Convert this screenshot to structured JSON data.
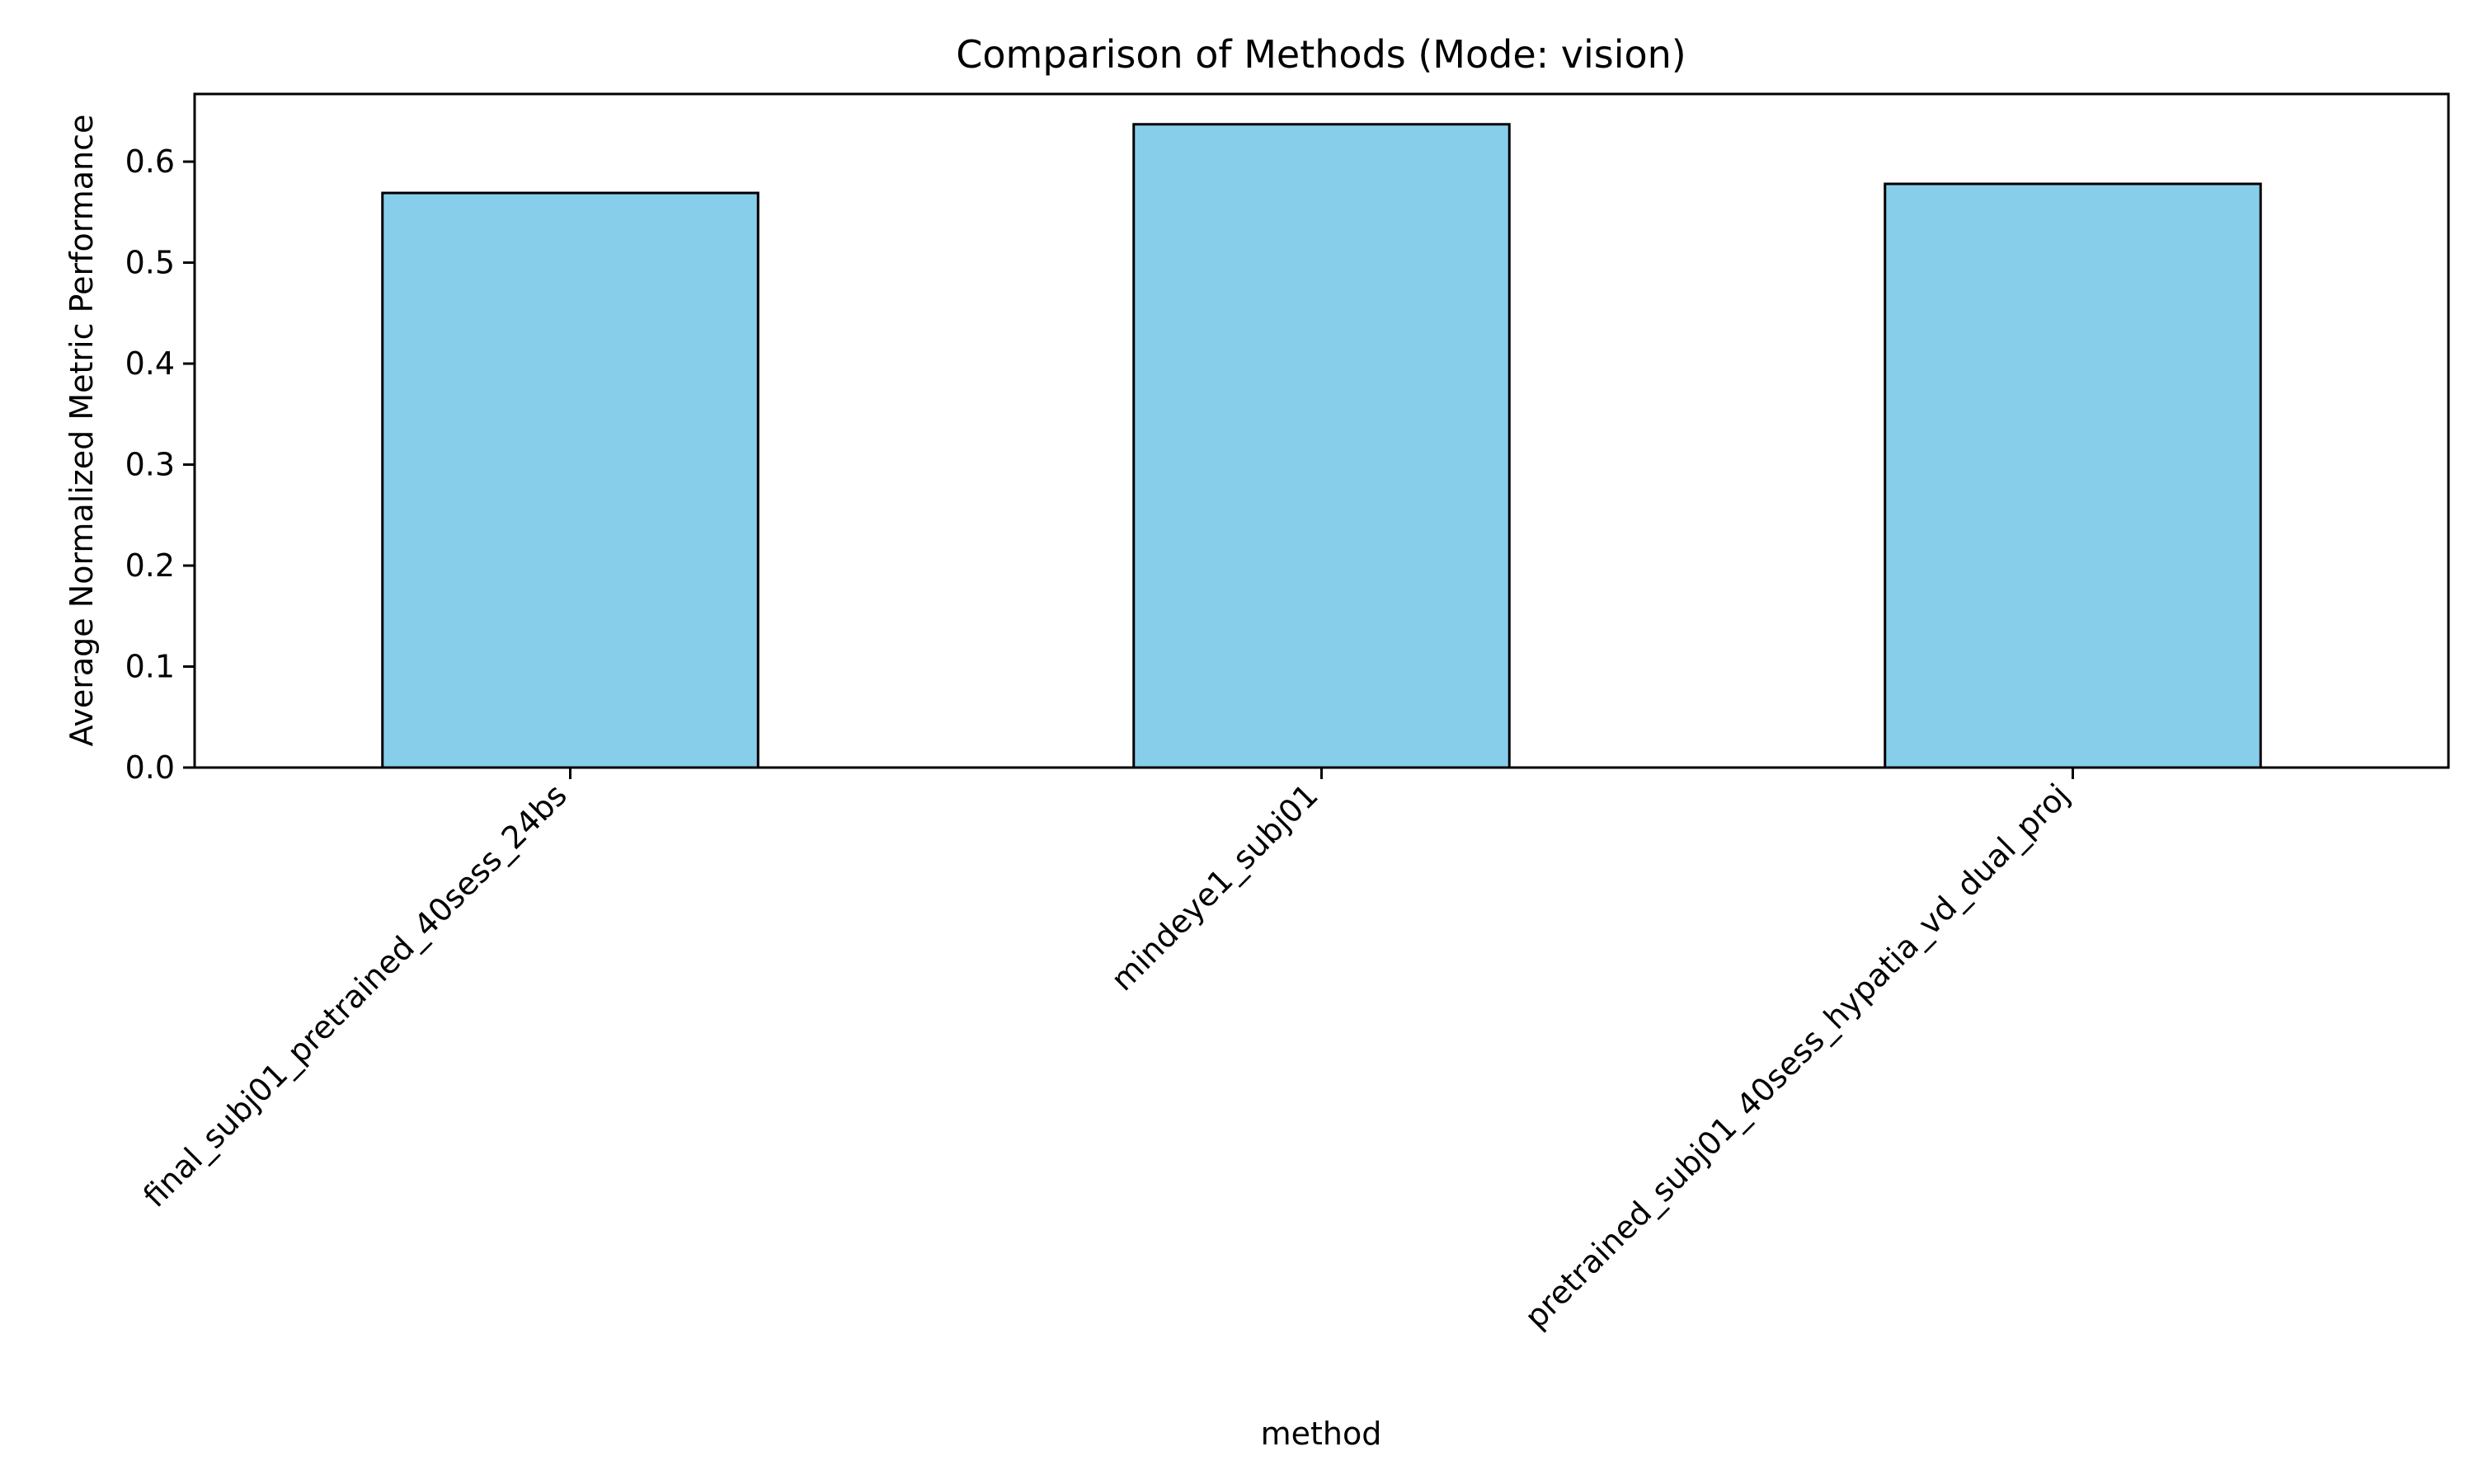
{
  "chart_data": {
    "type": "bar",
    "title": "Comparison of Methods (Mode: vision)",
    "xlabel": "method",
    "ylabel": "Average Normalized Metric Performance",
    "categories": [
      "final_subj01_pretrained_40sess_24bs",
      "mindeye1_subj01",
      "pretrained_subj01_40sess_hypatia_vd_dual_proj"
    ],
    "values": [
      0.569,
      0.637,
      0.578
    ],
    "ylim": [
      0,
      0.667
    ],
    "yticks": [
      0.0,
      0.1,
      0.2,
      0.3,
      0.4,
      0.5,
      0.6
    ],
    "ytick_labels": [
      "0.0",
      "0.1",
      "0.2",
      "0.3",
      "0.4",
      "0.5",
      "0.6"
    ],
    "grid": false,
    "legend": "none",
    "bar_color": "#87CEEB",
    "edge_color": "#000000"
  }
}
